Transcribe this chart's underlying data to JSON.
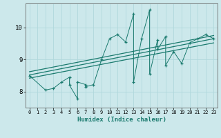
{
  "xlabel": "Humidex (Indice chaleur)",
  "xlim": [
    -0.5,
    23.5
  ],
  "ylim": [
    7.5,
    10.75
  ],
  "xticks": [
    0,
    1,
    2,
    3,
    4,
    5,
    6,
    7,
    8,
    9,
    10,
    11,
    12,
    13,
    14,
    15,
    16,
    17,
    18,
    19,
    20,
    21,
    22,
    23
  ],
  "yticks": [
    8,
    9,
    10
  ],
  "bg_color": "#cce8eb",
  "line_color": "#1a7a6e",
  "grid_color": "#b0d8dc",
  "scatter_x": [
    0,
    2,
    3,
    4,
    5,
    5,
    6,
    6,
    7,
    7,
    8,
    9,
    10,
    11,
    12,
    13,
    13,
    14,
    15,
    15,
    16,
    16,
    17,
    17,
    18,
    19,
    20,
    21,
    22,
    23
  ],
  "scatter_y": [
    8.5,
    8.05,
    8.1,
    8.3,
    8.45,
    8.2,
    7.78,
    8.3,
    8.22,
    8.15,
    8.22,
    9.0,
    9.65,
    9.78,
    9.55,
    10.42,
    8.3,
    9.65,
    10.55,
    8.55,
    9.62,
    9.32,
    9.72,
    8.82,
    9.25,
    8.88,
    9.52,
    9.65,
    9.78,
    9.65
  ],
  "trend1_x": [
    0,
    23
  ],
  "trend1_y": [
    8.42,
    9.52
  ],
  "trend2_x": [
    0,
    23
  ],
  "trend2_y": [
    8.52,
    9.65
  ],
  "trend3_x": [
    0,
    23
  ],
  "trend3_y": [
    8.62,
    9.75
  ]
}
